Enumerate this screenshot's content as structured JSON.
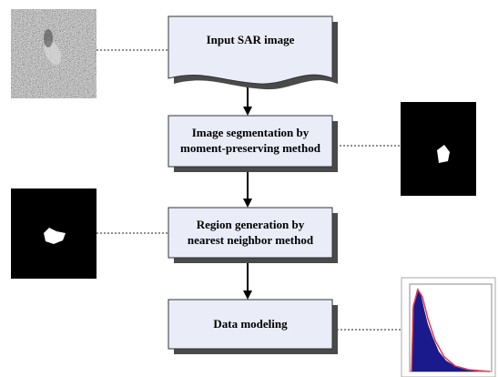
{
  "nodes": [
    {
      "lines": [
        "Input SAR image"
      ]
    },
    {
      "lines": [
        "Image segmentation by",
        "moment-preserving method"
      ]
    },
    {
      "lines": [
        "Region generation by",
        "nearest neighbor method"
      ]
    },
    {
      "lines": [
        "Data modeling"
      ]
    }
  ]
}
